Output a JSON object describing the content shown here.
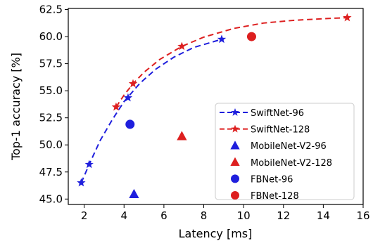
{
  "chart_data": {
    "type": "scatter",
    "title": "",
    "xlabel": "Latency [ms]",
    "ylabel": "Top-1 accuracy [%]",
    "xlim": [
      1.2,
      16.0
    ],
    "ylim": [
      44.5,
      62.6
    ],
    "xticks": [
      2,
      4,
      6,
      8,
      10,
      12,
      14,
      16
    ],
    "xtick_labels": [
      "2",
      "4",
      "6",
      "8",
      "10",
      "12",
      "14",
      "16"
    ],
    "yticks": [
      45.0,
      47.5,
      50.0,
      52.5,
      55.0,
      57.5,
      60.0,
      62.5
    ],
    "ytick_labels": [
      "45.0",
      "47.5",
      "50.0",
      "52.5",
      "55.0",
      "57.5",
      "60.0",
      "62.5"
    ],
    "grid": false,
    "legend_position": "lower-right",
    "series": [
      {
        "name": "SwiftNet-96",
        "marker": "star",
        "color": "#1f1fdd",
        "line": "dashed",
        "x": [
          1.85,
          2.25,
          4.2,
          8.9
        ],
        "y": [
          46.5,
          48.2,
          54.35,
          59.75
        ],
        "fit_x": [
          1.85,
          2.3,
          2.8,
          3.4,
          4.0,
          4.8,
          5.6,
          6.5,
          7.5,
          8.9
        ],
        "fit_y": [
          46.5,
          48.4,
          50.4,
          52.3,
          54.0,
          55.7,
          57.0,
          58.1,
          59.0,
          59.75
        ]
      },
      {
        "name": "SwiftNet-128",
        "marker": "star",
        "color": "#dd1f1f",
        "line": "dashed",
        "x": [
          3.6,
          4.45,
          6.9,
          15.2
        ],
        "y": [
          53.5,
          55.65,
          59.1,
          61.75
        ],
        "fit_x": [
          3.6,
          4.0,
          4.45,
          5.0,
          5.8,
          6.9,
          8.0,
          9.5,
          11.0,
          12.5,
          14.0,
          15.2
        ],
        "fit_y": [
          53.5,
          54.6,
          55.65,
          56.7,
          57.9,
          59.1,
          59.95,
          60.75,
          61.25,
          61.5,
          61.65,
          61.75
        ]
      },
      {
        "name": "MobileNet-V2-96",
        "marker": "triangle",
        "color": "#1f1fdd",
        "line": "none",
        "x": [
          4.5
        ],
        "y": [
          45.45
        ]
      },
      {
        "name": "MobileNet-V2-128",
        "marker": "triangle",
        "color": "#dd1f1f",
        "line": "none",
        "x": [
          6.9
        ],
        "y": [
          50.8
        ]
      },
      {
        "name": "FBNet-96",
        "marker": "circle",
        "color": "#1f1fdd",
        "line": "none",
        "x": [
          4.3
        ],
        "y": [
          51.9
        ]
      },
      {
        "name": "FBNet-128",
        "marker": "circle",
        "color": "#dd1f1f",
        "line": "none",
        "x": [
          10.4
        ],
        "y": [
          60.0
        ]
      }
    ]
  }
}
